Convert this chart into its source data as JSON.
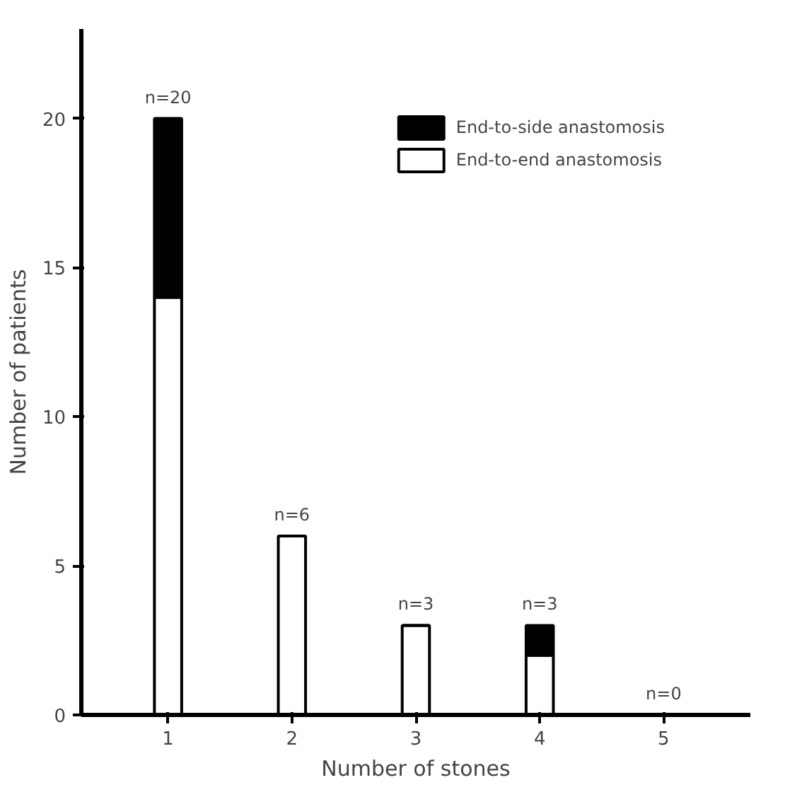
{
  "chart_data": {
    "type": "bar",
    "stacked": true,
    "xlabel": "Number of stones",
    "ylabel": "Number of patients",
    "categories": [
      "1",
      "2",
      "3",
      "4",
      "5"
    ],
    "series": [
      {
        "name": "End-to-end anastomosis",
        "color": "#ffffff",
        "values": [
          14,
          6,
          3,
          2,
          0
        ]
      },
      {
        "name": "End-to-side anastomosis",
        "color": "#000000",
        "values": [
          6,
          0,
          0,
          1,
          0
        ]
      }
    ],
    "totals": [
      "n=20",
      "n=6",
      "n=3",
      "n=3",
      "n=0"
    ],
    "ylim": [
      0,
      23
    ],
    "yticks": [
      0,
      5,
      10,
      15,
      20
    ],
    "grid": false,
    "legend": "top right"
  }
}
